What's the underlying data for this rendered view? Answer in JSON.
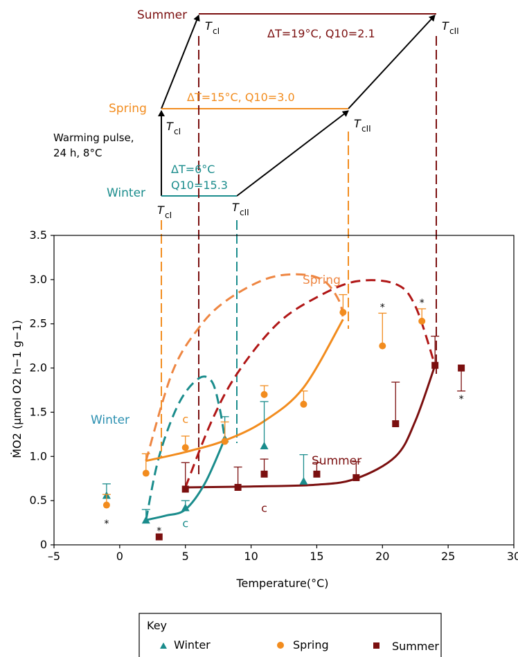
{
  "colors": {
    "winter": "#1a8c8c",
    "spring": "#f28c1e",
    "spring_dashed": "#ee8642",
    "summer": "#7b0f0f",
    "summer_dashed": "#b01616",
    "frame": "#000000"
  },
  "labels": {
    "summer": "Summer",
    "spring": "Spring",
    "winter": "Winter",
    "warming_line1": "Warming pulse,",
    "warming_line2": "24 h, 8°C",
    "tcl": "T",
    "tcl_sub": "cI",
    "tcll_sub": "cII",
    "summer_delta": "ΔT=19°C, Q10=2.1",
    "spring_delta": "ΔT=15°C, Q10=3.0",
    "winter_delta": "ΔT=6°C",
    "winter_q10": "Q10=15.3",
    "c_marker": "c",
    "star_marker": "*"
  },
  "axes": {
    "xlabel": "Temperature(°C)",
    "ylabel": "ṀO2 (μmol O2 h−1 g−1)",
    "xlim": [
      -5,
      30
    ],
    "ylim": [
      0,
      3.5
    ],
    "xticks": [
      -5,
      0,
      5,
      10,
      15,
      20,
      25,
      30
    ],
    "xtick_labels": [
      "–5",
      "0",
      "5",
      "10",
      "15",
      "20",
      "25",
      "30"
    ],
    "yticks": [
      0,
      0.5,
      1.0,
      1.5,
      2.0,
      2.5,
      3.0,
      3.5
    ],
    "ytick_labels": [
      "0",
      "0.5",
      "1.0",
      "1.5",
      "2.0",
      "2.5",
      "3.0",
      "3.5"
    ]
  },
  "key": {
    "title": "Key",
    "winter": "Winter",
    "spring": "Spring",
    "summer": "Summer"
  },
  "chart_data": {
    "type": "scatter",
    "xlabel": "Temperature(°C)",
    "ylabel": "ṀO2 (μmol O2 h−1 g−1)",
    "xlim": [
      -5,
      30
    ],
    "ylim": [
      0,
      3.5
    ],
    "legend_position": "bottom",
    "series": [
      {
        "name": "Winter",
        "marker": "triangle",
        "points": [
          {
            "x": -1,
            "y": 0.56,
            "err": 0.13,
            "star": false
          },
          {
            "x": 2,
            "y": 0.28,
            "err": 0.12,
            "star": false
          },
          {
            "x": 5,
            "y": 0.42,
            "err": 0.08,
            "star": false
          },
          {
            "x": 8,
            "y": 1.2,
            "err": 0.25,
            "star": false
          },
          {
            "x": 11,
            "y": 1.12,
            "err": 0.5,
            "star": false
          },
          {
            "x": 14,
            "y": 0.72,
            "err": 0.3,
            "star": false
          }
        ],
        "thresholds": {
          "Tcl": 2,
          "Tcll": 8,
          "delta_T": 6,
          "Q10": 15.3
        }
      },
      {
        "name": "Spring",
        "marker": "circle",
        "points": [
          {
            "x": -1,
            "y": 0.45,
            "err": 0.12,
            "star": true
          },
          {
            "x": 2,
            "y": 0.81,
            "err": 0.22,
            "star": false
          },
          {
            "x": 5,
            "y": 1.1,
            "err": 0.13,
            "star": false
          },
          {
            "x": 8,
            "y": 1.17,
            "err": 0.22,
            "star": false
          },
          {
            "x": 11,
            "y": 1.7,
            "err": 0.1,
            "star": false
          },
          {
            "x": 14,
            "y": 1.59,
            "err": 0.15,
            "star": false
          },
          {
            "x": 17,
            "y": 2.63,
            "err": 0.2,
            "star": false
          },
          {
            "x": 20,
            "y": 2.25,
            "err": 0.37,
            "star": true
          },
          {
            "x": 23,
            "y": 2.53,
            "err": 0.14,
            "star": true
          }
        ],
        "thresholds": {
          "Tcl": 2,
          "Tcll": 17,
          "delta_T": 15,
          "Q10": 3.0
        }
      },
      {
        "name": "Summer",
        "marker": "square",
        "points": [
          {
            "x": 3,
            "y": 0.09,
            "err": 0,
            "star": true
          },
          {
            "x": 5,
            "y": 0.63,
            "err": 0.3,
            "star": false
          },
          {
            "x": 9,
            "y": 0.65,
            "err": 0.23,
            "star": false
          },
          {
            "x": 11,
            "y": 0.8,
            "err": 0.17,
            "star": false
          },
          {
            "x": 15,
            "y": 0.8,
            "err": 0.13,
            "star": false
          },
          {
            "x": 18,
            "y": 0.76,
            "err": 0.18,
            "star": false
          },
          {
            "x": 21,
            "y": 1.37,
            "err": 0.47,
            "star": false
          },
          {
            "x": 24,
            "y": 2.03,
            "err": 0.33,
            "star": false
          },
          {
            "x": 26,
            "y": 2.0,
            "err": 0.26,
            "star": true
          }
        ],
        "thresholds": {
          "Tcl": 5,
          "Tcll": 24,
          "delta_T": 19,
          "Q10": 2.1
        }
      }
    ],
    "fit_curves": {
      "winter_solid": [
        [
          2,
          0.28
        ],
        [
          3.5,
          0.33
        ],
        [
          5,
          0.4
        ],
        [
          6.5,
          0.7
        ],
        [
          8,
          1.2
        ]
      ],
      "spring_solid": [
        [
          2,
          0.95
        ],
        [
          5,
          1.05
        ],
        [
          8,
          1.18
        ],
        [
          11,
          1.4
        ],
        [
          14,
          1.78
        ],
        [
          17,
          2.55
        ]
      ],
      "summer_solid": [
        [
          5,
          0.65
        ],
        [
          10,
          0.66
        ],
        [
          15,
          0.68
        ],
        [
          18,
          0.75
        ],
        [
          21,
          1.0
        ],
        [
          22.5,
          1.4
        ],
        [
          24,
          2.03
        ]
      ],
      "winter_dashed": [
        [
          2,
          0.28
        ],
        [
          3,
          1.0
        ],
        [
          4.5,
          1.6
        ],
        [
          6,
          1.88
        ],
        [
          7,
          1.85
        ],
        [
          7.6,
          1.55
        ],
        [
          8,
          1.2
        ]
      ],
      "spring_dashed": [
        [
          2,
          0.95
        ],
        [
          4,
          1.95
        ],
        [
          6,
          2.45
        ],
        [
          8,
          2.75
        ],
        [
          11,
          3.0
        ],
        [
          13.5,
          3.06
        ],
        [
          15.5,
          2.99
        ],
        [
          16.7,
          2.76
        ],
        [
          17,
          2.55
        ]
      ],
      "summer_dashed": [
        [
          5,
          0.65
        ],
        [
          7,
          1.4
        ],
        [
          9,
          1.95
        ],
        [
          12,
          2.5
        ],
        [
          15,
          2.8
        ],
        [
          18,
          2.98
        ],
        [
          21,
          2.95
        ],
        [
          22.5,
          2.7
        ],
        [
          24,
          2.03
        ]
      ]
    },
    "c_annotations": [
      {
        "series": "Spring",
        "x": 5,
        "y": 1.38
      },
      {
        "series": "Winter",
        "x": 5,
        "y": 0.2
      },
      {
        "series": "Summer",
        "x": 11,
        "y": 0.37
      }
    ]
  }
}
